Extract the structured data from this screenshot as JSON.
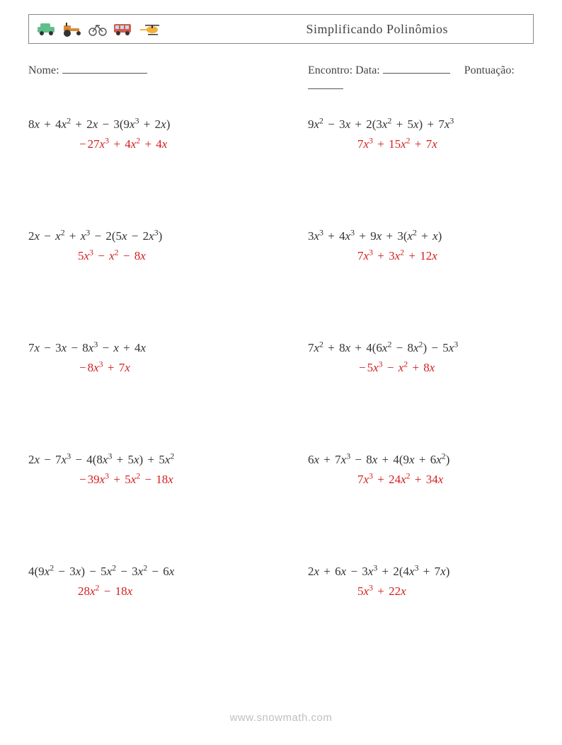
{
  "colors": {
    "text": "#333333",
    "answer": "#d41f1f",
    "watermark": "#bfbfbf",
    "border": "#888888",
    "car": "#61bf89",
    "tractor": "#d98a36",
    "bike": "#5b5b5b",
    "bus": "#d75a4a",
    "heli": "#f2b134"
  },
  "title": "Simplificando Polinômios",
  "meta": {
    "name_label": "Nome:",
    "date_label": "Encontro: Data:",
    "score_label": "Pontuação:"
  },
  "blanks": {
    "name_w": 120,
    "date_w": 95,
    "score_w": 50
  },
  "fontsize": {
    "title": 18,
    "meta": 16,
    "problem": 17
  },
  "problems": [
    {
      "q": "8x + 4x^2 + 2x − 3(9x^3 + 2x)",
      "a": "−27x^3 + 4x^2 + 4x"
    },
    {
      "q": "9x^2 − 3x + 2(3x^2 + 5x) + 7x^3",
      "a": "7x^3 + 15x^2 + 7x"
    },
    {
      "q": "2x − x^2 + x^3 − 2(5x − 2x^3)",
      "a": "5x^3 − x^2 − 8x"
    },
    {
      "q": "3x^3 + 4x^3 + 9x + 3(x^2 + x)",
      "a": "7x^3 + 3x^2 + 12x"
    },
    {
      "q": "7x − 3x − 8x^3 − x + 4x",
      "a": "−8x^3 + 7x"
    },
    {
      "q": "7x^2 + 8x + 4(6x^2 − 8x^2) − 5x^3",
      "a": "−5x^3 − x^2 + 8x"
    },
    {
      "q": "2x − 7x^3 − 4(8x^3 + 5x) + 5x^2",
      "a": "−39x^3 + 5x^2 − 18x"
    },
    {
      "q": "6x + 7x^3 − 8x + 4(9x + 6x^2)",
      "a": "7x^3 + 24x^2 + 34x"
    },
    {
      "q": "4(9x^2 − 3x) − 5x^2 − 3x^2 − 6x",
      "a": "28x^2 − 18x"
    },
    {
      "q": "2x + 6x − 3x^3 + 2(4x^3 + 7x)",
      "a": "5x^3 + 22x"
    }
  ],
  "watermark": "www.snowmath.com"
}
